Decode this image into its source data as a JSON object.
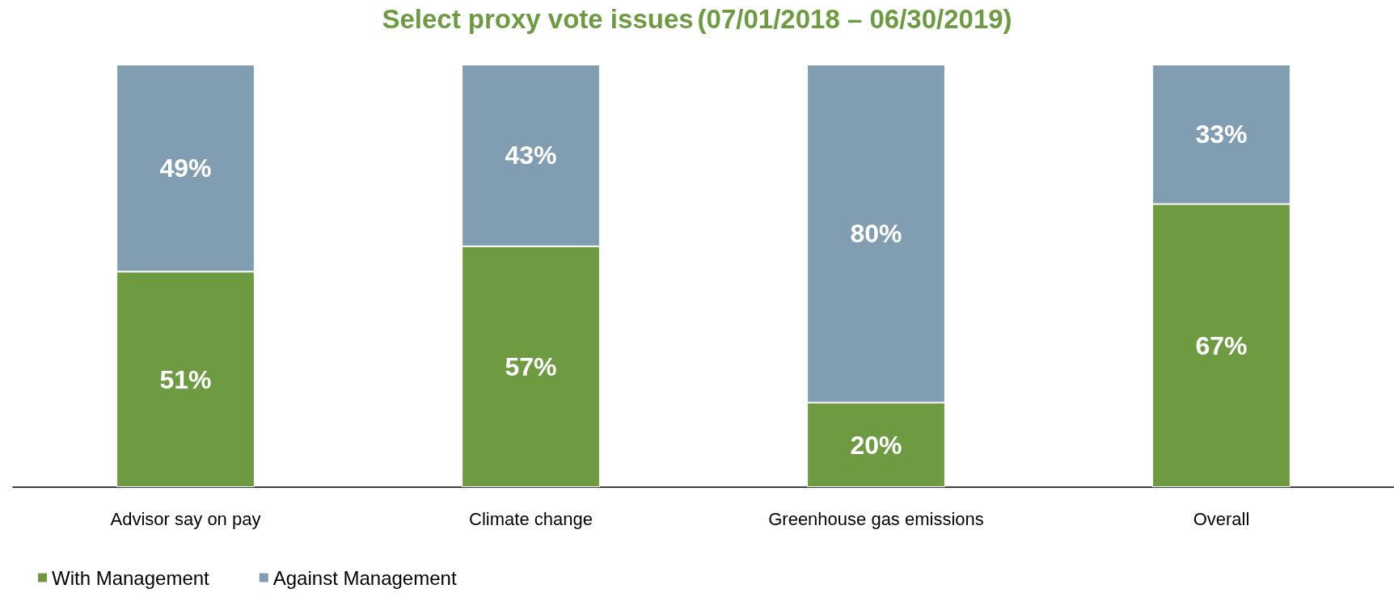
{
  "chart_data": {
    "type": "bar",
    "title": "Select proxy vote issues",
    "subtitle": "(07/01/2018 – 06/30/2019)",
    "categories": [
      "Advisor say on pay",
      "Climate change",
      "Greenhouse gas emissions",
      "Overall"
    ],
    "series": [
      {
        "name": "With Management",
        "color": "#6e9b41",
        "values": [
          51,
          57,
          20,
          67
        ],
        "value_labels": [
          "51%",
          "57%",
          "20%",
          "67%"
        ]
      },
      {
        "name": "Against Management",
        "color": "#819db1",
        "values": [
          49,
          43,
          80,
          33
        ],
        "value_labels": [
          "49%",
          "43%",
          "80%",
          "33%"
        ]
      }
    ],
    "stacked": true,
    "legend": "bottom left"
  }
}
